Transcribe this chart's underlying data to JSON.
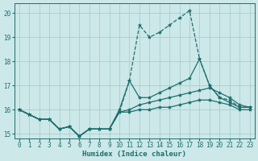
{
  "xlabel": "Humidex (Indice chaleur)",
  "bg_color": "#cce8e8",
  "grid_color": "#aacece",
  "line_color": "#1e6e6e",
  "xlim": [
    -0.5,
    23.5
  ],
  "ylim": [
    14.8,
    20.4
  ],
  "yticks": [
    15,
    16,
    17,
    18,
    19,
    20
  ],
  "xticks": [
    0,
    1,
    2,
    3,
    4,
    5,
    6,
    7,
    8,
    9,
    10,
    11,
    12,
    13,
    14,
    15,
    16,
    17,
    18,
    19,
    20,
    21,
    22,
    23
  ],
  "lines": [
    {
      "x": [
        0,
        1,
        2,
        3,
        4,
        5,
        6,
        7,
        8,
        9,
        10,
        11,
        12,
        13,
        14,
        15,
        16,
        17,
        18,
        19,
        20,
        21,
        22,
        23
      ],
      "y": [
        16.0,
        15.8,
        15.6,
        15.6,
        15.2,
        15.3,
        14.9,
        15.2,
        15.2,
        15.2,
        15.9,
        17.2,
        19.5,
        19.0,
        19.2,
        19.5,
        19.8,
        20.1,
        18.1,
        17.0,
        16.5,
        16.4,
        16.1,
        16.1
      ],
      "style": "--",
      "marker": "*",
      "markersize": 3,
      "linewidth": 0.9,
      "zorder": 5
    },
    {
      "x": [
        0,
        1,
        2,
        3,
        4,
        5,
        6,
        7,
        8,
        9,
        10,
        11,
        12,
        13,
        14,
        15,
        16,
        17,
        18,
        19,
        20,
        21,
        22,
        23
      ],
      "y": [
        16.0,
        15.8,
        15.6,
        15.6,
        15.2,
        15.3,
        14.9,
        15.2,
        15.2,
        15.2,
        16.0,
        17.2,
        16.5,
        16.5,
        16.7,
        16.9,
        17.1,
        17.3,
        18.1,
        17.0,
        16.5,
        16.3,
        16.1,
        16.1
      ],
      "style": "-",
      "marker": "*",
      "markersize": 3,
      "linewidth": 0.9,
      "zorder": 4
    },
    {
      "x": [
        0,
        1,
        2,
        3,
        4,
        5,
        6,
        7,
        8,
        9,
        10,
        11,
        12,
        13,
        14,
        15,
        16,
        17,
        18,
        19,
        20,
        21,
        22,
        23
      ],
      "y": [
        16.0,
        15.8,
        15.6,
        15.6,
        15.2,
        15.3,
        14.9,
        15.2,
        15.2,
        15.2,
        15.9,
        16.0,
        16.2,
        16.3,
        16.4,
        16.5,
        16.6,
        16.7,
        16.8,
        16.9,
        16.7,
        16.5,
        16.2,
        16.1
      ],
      "style": "-",
      "marker": "*",
      "markersize": 3,
      "linewidth": 0.9,
      "zorder": 3
    },
    {
      "x": [
        0,
        1,
        2,
        3,
        4,
        5,
        6,
        7,
        8,
        9,
        10,
        11,
        12,
        13,
        14,
        15,
        16,
        17,
        18,
        19,
        20,
        21,
        22,
        23
      ],
      "y": [
        16.0,
        15.8,
        15.6,
        15.6,
        15.2,
        15.3,
        14.9,
        15.2,
        15.2,
        15.2,
        15.9,
        15.9,
        16.0,
        16.0,
        16.1,
        16.1,
        16.2,
        16.3,
        16.4,
        16.4,
        16.3,
        16.2,
        16.0,
        16.0
      ],
      "style": "-",
      "marker": "*",
      "markersize": 3,
      "linewidth": 0.9,
      "zorder": 2
    }
  ]
}
